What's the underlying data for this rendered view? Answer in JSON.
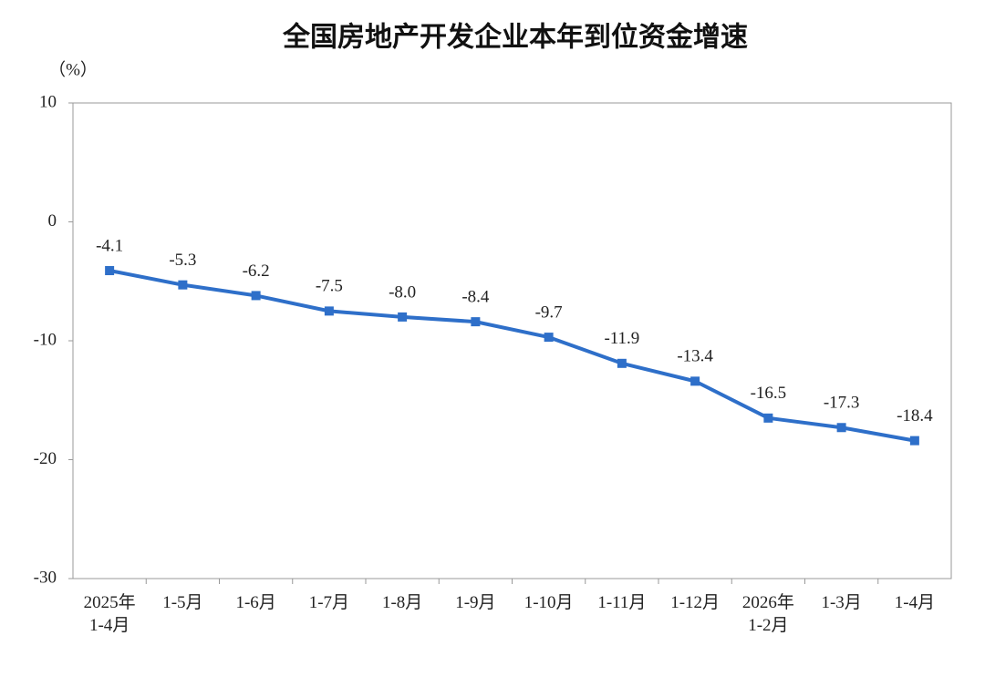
{
  "chart_data": {
    "type": "line",
    "title": "全国房地产开发企业本年到位资金增速",
    "y_unit": "（%）",
    "categories": [
      "2025年\n1-4月",
      "1-5月",
      "1-6月",
      "1-7月",
      "1-8月",
      "1-9月",
      "1-10月",
      "1-11月",
      "1-12月",
      "2026年\n1-2月",
      "1-3月",
      "1-4月"
    ],
    "series": [
      {
        "name": "本年到位资金增速",
        "color": "#2e6fc9",
        "values": [
          -4.1,
          -5.3,
          -6.2,
          -7.5,
          -8.0,
          -8.4,
          -9.7,
          -11.9,
          -13.4,
          -16.5,
          -17.3,
          -18.4
        ],
        "value_labels": [
          "-4.1",
          "-5.3",
          "-6.2",
          "-7.5",
          "-8.0",
          "-8.4",
          "-9.7",
          "-11.9",
          "-13.4",
          "-16.5",
          "-17.3",
          "-18.4"
        ]
      }
    ],
    "ylim": [
      -30,
      10
    ],
    "yticks": [
      -30,
      -20,
      -10,
      0,
      10
    ]
  }
}
